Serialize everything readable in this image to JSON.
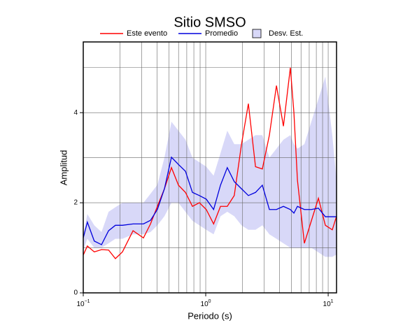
{
  "chart_data": {
    "type": "line",
    "title": "Sitio SMSO",
    "x_label": "Periodo (s)",
    "y_label": "Amplitud",
    "xscale": "log",
    "xlim": [
      0.1,
      11.7
    ],
    "ylim": [
      0,
      5.57
    ],
    "xticks": [
      {
        "value": 0.1,
        "label": "10",
        "exponent": "−1"
      },
      {
        "value": 1,
        "label": "10",
        "exponent": "0"
      },
      {
        "value": 10,
        "label": "10",
        "exponent": "1"
      }
    ],
    "x_minor_ticks": [
      0.2,
      0.3,
      0.4,
      0.5,
      0.6,
      0.7,
      0.8,
      0.9,
      2,
      3,
      4,
      5,
      6,
      7,
      8,
      9
    ],
    "yticks": [
      0,
      2,
      4
    ],
    "y_minor_ticks": [
      1,
      3,
      5
    ],
    "grid": true,
    "x": [
      0.1,
      0.108,
      0.123,
      0.141,
      0.161,
      0.183,
      0.209,
      0.255,
      0.31,
      0.354,
      0.403,
      0.46,
      0.525,
      0.599,
      0.683,
      0.779,
      0.888,
      1.01,
      1.16,
      1.32,
      1.5,
      1.71,
      1.96,
      2.23,
      2.55,
      2.9,
      3.31,
      3.78,
      4.31,
      4.91,
      5.25,
      5.61,
      6.39,
      7.29,
      8.32,
      9.48,
      10.8,
      11.7
    ],
    "band": {
      "name": "Desv. Est.",
      "color": "#d8d8f8",
      "lower": [
        0.95,
        1.2,
        1.0,
        1.0,
        1.1,
        1.2,
        1.2,
        1.3,
        1.3,
        1.35,
        1.5,
        1.7,
        2.0,
        2.0,
        1.8,
        1.6,
        1.5,
        1.4,
        1.3,
        1.7,
        1.8,
        1.7,
        1.5,
        1.4,
        1.4,
        1.5,
        1.3,
        1.2,
        1.1,
        1.0,
        1.0,
        1.0,
        1.0,
        1.0,
        0.9,
        0.8,
        0.8,
        0.85
      ],
      "upper": [
        1.3,
        1.75,
        1.5,
        1.35,
        1.8,
        1.9,
        2.0,
        2.0,
        2.0,
        2.2,
        2.4,
        3.0,
        3.8,
        3.6,
        3.4,
        3.0,
        2.9,
        2.8,
        2.6,
        3.1,
        3.6,
        3.3,
        3.3,
        3.4,
        3.5,
        3.5,
        3.0,
        3.2,
        3.4,
        3.5,
        3.3,
        3.2,
        3.3,
        3.8,
        4.3,
        4.8,
        3.5,
        2.5
      ]
    },
    "series": [
      {
        "name": "Este evento",
        "color": "#ff0000",
        "values": [
          0.84,
          1.04,
          0.91,
          0.96,
          0.95,
          0.76,
          0.91,
          1.38,
          1.22,
          1.53,
          1.92,
          2.31,
          2.78,
          2.39,
          2.23,
          1.92,
          2.0,
          1.85,
          1.53,
          1.92,
          1.92,
          2.16,
          3.3,
          4.2,
          2.8,
          2.75,
          3.5,
          4.6,
          3.7,
          5.0,
          4.0,
          2.5,
          1.1,
          1.6,
          2.1,
          1.5,
          1.4,
          1.7
        ]
      },
      {
        "name": "Promedio",
        "color": "#0000dd",
        "values": [
          1.22,
          1.57,
          1.15,
          1.07,
          1.38,
          1.5,
          1.5,
          1.53,
          1.53,
          1.61,
          1.85,
          2.31,
          3.01,
          2.85,
          2.7,
          2.23,
          2.16,
          2.08,
          1.85,
          2.39,
          2.78,
          2.47,
          2.31,
          2.16,
          2.23,
          2.39,
          1.85,
          1.85,
          1.92,
          1.85,
          1.77,
          1.92,
          1.85,
          1.85,
          1.88,
          1.69,
          1.69,
          1.69
        ]
      }
    ]
  }
}
